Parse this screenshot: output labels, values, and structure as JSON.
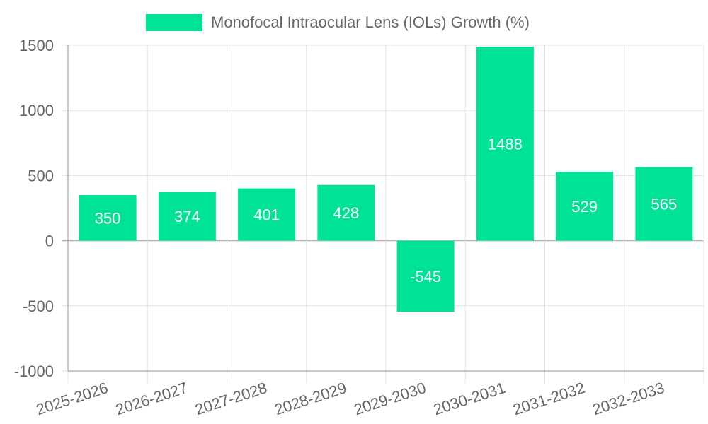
{
  "chart_data": {
    "type": "bar",
    "categories": [
      "2025-2026",
      "2026-2027",
      "2027-2028",
      "2028-2029",
      "2029-2030",
      "2030-2031",
      "2031-2032",
      "2032-2033"
    ],
    "series": [
      {
        "name": "Monofocal Intraocular Lens (IOLs) Growth (%)",
        "values": [
          350,
          374,
          401,
          428,
          -545,
          1488,
          529,
          565
        ],
        "color": "#00e396"
      }
    ],
    "yticks": [
      "1500",
      "1000",
      "500",
      "0",
      "-500",
      "-1000"
    ],
    "ylim": [
      -1000,
      1500
    ],
    "grid": true,
    "legend_position": "top-center",
    "xtick_rotation": "tilted"
  }
}
